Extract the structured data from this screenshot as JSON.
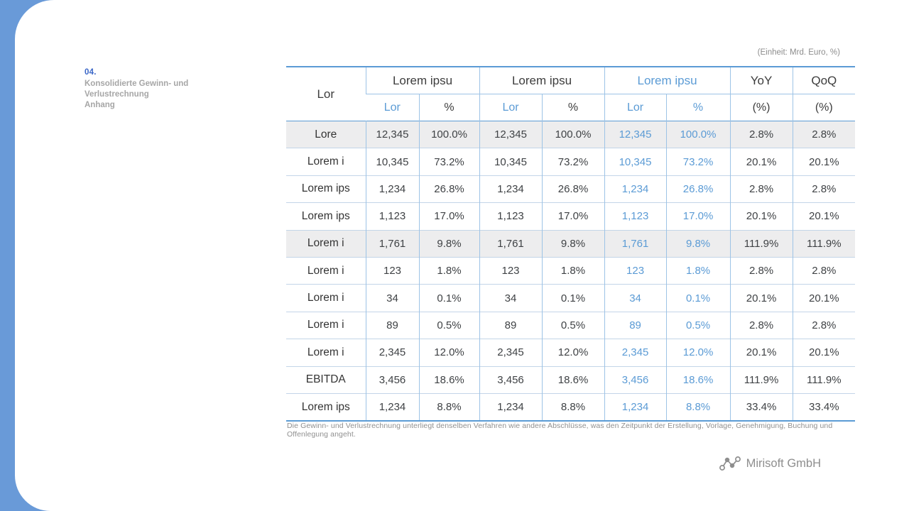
{
  "section": {
    "number": "04.",
    "lines": [
      "Konsolidierte Gewinn- und",
      "Verlustrechnung",
      "Anhang"
    ]
  },
  "unit_note": "(Einheit: Mrd. Euro, %)",
  "footnote": "Die Gewinn- und Verlustrechnung unterliegt denselben Verfahren wie andere Abschlüsse, was den Zeitpunkt der Erstellung, Vorlage, Genehmigung, Buchung und Offenlegung angeht.",
  "logo_text": "Mirisoft GmbH",
  "colors": {
    "accent_blue": "#5B9BD5",
    "band_blue": "#699AD8",
    "section_number_blue": "#3A66C7",
    "shaded_row": "#EDEDEE",
    "gray_text": "#8C8C8C"
  },
  "table": {
    "label_header": "Lor",
    "groups": [
      {
        "label": "Lorem ipsu",
        "sub": [
          "Lor",
          "%"
        ],
        "blue": false
      },
      {
        "label": "Lorem ipsu",
        "sub": [
          "Lor",
          "%"
        ],
        "blue": false
      },
      {
        "label": "Lorem ipsu",
        "sub": [
          "Lor",
          "%"
        ],
        "blue": true
      }
    ],
    "yoy": {
      "label": "YoY",
      "sub": "(%)"
    },
    "qoq": {
      "label": "QoQ",
      "sub": "(%)"
    },
    "rows": [
      {
        "label": "Lore",
        "bold": false,
        "shaded": true,
        "cells": [
          "12,345",
          "100.0%",
          "12,345",
          "100.0%",
          "12,345",
          "100.0%",
          "2.8%",
          "2.8%"
        ]
      },
      {
        "label": "Lorem i",
        "bold": false,
        "shaded": false,
        "cells": [
          "10,345",
          "73.2%",
          "10,345",
          "73.2%",
          "10,345",
          "73.2%",
          "20.1%",
          "20.1%"
        ]
      },
      {
        "label": "Lorem ips",
        "bold": false,
        "shaded": false,
        "cells": [
          "1,234",
          "26.8%",
          "1,234",
          "26.8%",
          "1,234",
          "26.8%",
          "2.8%",
          "2.8%"
        ]
      },
      {
        "label": "Lorem ips",
        "bold": false,
        "shaded": false,
        "cells": [
          "1,123",
          "17.0%",
          "1,123",
          "17.0%",
          "1,123",
          "17.0%",
          "20.1%",
          "20.1%"
        ]
      },
      {
        "label": "Lorem i",
        "bold": false,
        "shaded": true,
        "cells": [
          "1,761",
          "9.8%",
          "1,761",
          "9.8%",
          "1,761",
          "9.8%",
          "111.9%",
          "111.9%"
        ]
      },
      {
        "label": "Lorem i",
        "bold": false,
        "shaded": false,
        "cells": [
          "123",
          "1.8%",
          "123",
          "1.8%",
          "123",
          "1.8%",
          "2.8%",
          "2.8%"
        ]
      },
      {
        "label": "Lorem i",
        "bold": true,
        "shaded": false,
        "cells": [
          "34",
          "0.1%",
          "34",
          "0.1%",
          "34",
          "0.1%",
          "20.1%",
          "20.1%"
        ]
      },
      {
        "label": "Lorem i",
        "bold": false,
        "shaded": false,
        "cells": [
          "89",
          "0.5%",
          "89",
          "0.5%",
          "89",
          "0.5%",
          "2.8%",
          "2.8%"
        ]
      },
      {
        "label": "Lorem i",
        "bold": false,
        "shaded": false,
        "cells": [
          "2,345",
          "12.0%",
          "2,345",
          "12.0%",
          "2,345",
          "12.0%",
          "20.1%",
          "20.1%"
        ]
      },
      {
        "label": "EBITDA",
        "bold": true,
        "shaded": false,
        "cells": [
          "3,456",
          "18.6%",
          "3,456",
          "18.6%",
          "3,456",
          "18.6%",
          "111.9%",
          "111.9%"
        ]
      },
      {
        "label": "Lorem ips",
        "bold": false,
        "shaded": false,
        "cells": [
          "1,234",
          "8.8%",
          "1,234",
          "8.8%",
          "1,234",
          "8.8%",
          "33.4%",
          "33.4%"
        ]
      }
    ]
  }
}
